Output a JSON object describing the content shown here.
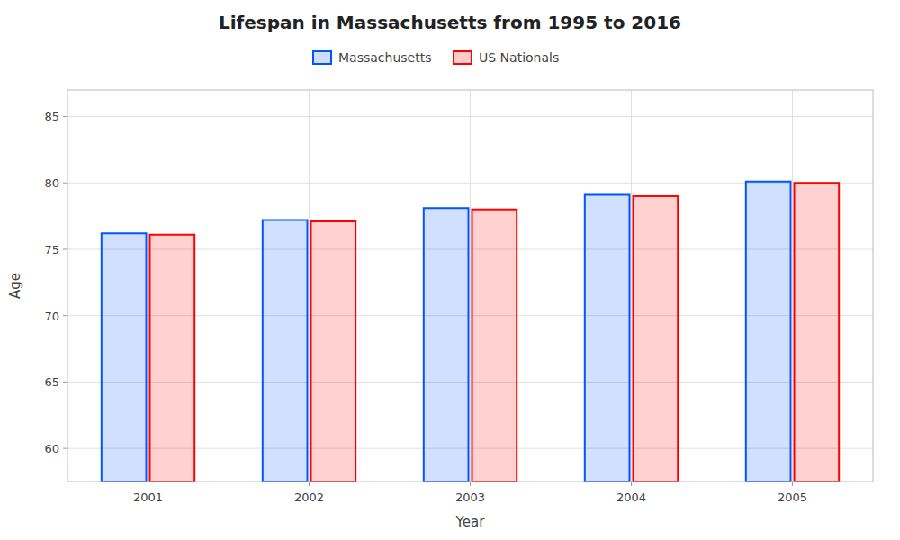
{
  "chart_data": {
    "type": "bar",
    "title": "Lifespan in Massachusetts from 1995 to 2016",
    "x_label": "Year",
    "y_label": "Age",
    "categories": [
      "2001",
      "2002",
      "2003",
      "2004",
      "2005"
    ],
    "series": [
      {
        "name": "Massachusetts",
        "color": "#0055ff",
        "values": [
          76.2,
          77.2,
          78.1,
          79.1,
          80.1
        ]
      },
      {
        "name": "US Nationals",
        "color": "#ff0000",
        "values": [
          76.1,
          77.1,
          78.0,
          79.0,
          80.0
        ]
      }
    ],
    "ylim": [
      57.5,
      87.0
    ],
    "yticks": [
      60,
      65,
      70,
      75,
      80,
      85
    ],
    "grid": true,
    "legend": "top"
  }
}
